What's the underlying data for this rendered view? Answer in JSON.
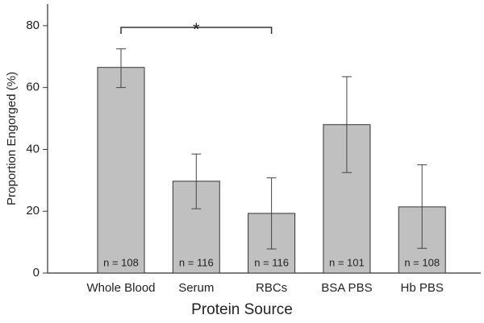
{
  "chart_data": {
    "type": "bar",
    "x_label": "Protein Source",
    "y_label": "Proportion Engorged (%)",
    "categories": [
      "Whole Blood",
      "Serum",
      "RBCs",
      "BSA PBS",
      "Hb PBS"
    ],
    "values": [
      66.5,
      29.7,
      19.3,
      48,
      21.4
    ],
    "upper": [
      72.5,
      38.5,
      30.8,
      63.5,
      35
    ],
    "lower": [
      60,
      20.8,
      7.8,
      32.5,
      8
    ],
    "n_labels": [
      "n = 108",
      "n = 116",
      "n = 116",
      "n = 101",
      "n = 108"
    ],
    "annotation": "*",
    "color": "#c0c0c0",
    "ylim": [
      0,
      87
    ],
    "yticks": [
      0,
      20,
      40,
      60,
      80
    ],
    "grid": false
  }
}
